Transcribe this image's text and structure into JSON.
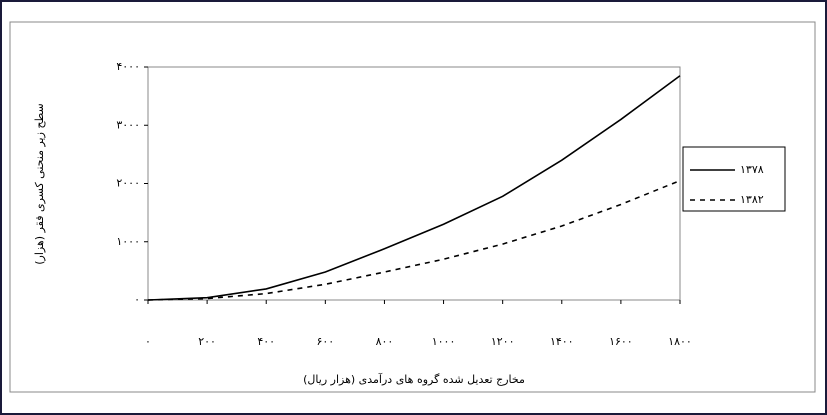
{
  "chart_data": {
    "type": "line",
    "x_label": "مخارج تعدیل شده گروه های درآمدی (هزار ریال)",
    "y_label": "سطح زیر منحنی کسری فقر (هزار)",
    "x": [
      0,
      200,
      400,
      600,
      800,
      1000,
      1200,
      1400,
      1600,
      1800
    ],
    "series": [
      {
        "name": "۱۳۷۸",
        "color": "#000000",
        "line_style": "solid",
        "values": [
          0,
          40,
          190,
          480,
          880,
          1300,
          1780,
          2400,
          3100,
          3850
        ]
      },
      {
        "name": "۱۳۸۲",
        "color": "#000000",
        "line_style": "dashed",
        "values": [
          0,
          25,
          110,
          270,
          480,
          700,
          960,
          1270,
          1640,
          2050
        ]
      }
    ],
    "xlim": [
      0,
      1800
    ],
    "xticks": [
      {
        "value": 0,
        "label": "۰"
      },
      {
        "value": 200,
        "label": "۲۰۰"
      },
      {
        "value": 400,
        "label": "۴۰۰"
      },
      {
        "value": 600,
        "label": "۶۰۰"
      },
      {
        "value": 800,
        "label": "۸۰۰"
      },
      {
        "value": 1000,
        "label": "۱۰۰۰"
      },
      {
        "value": 1200,
        "label": "۱۲۰۰"
      },
      {
        "value": 1400,
        "label": "۱۴۰۰"
      },
      {
        "value": 1600,
        "label": "۱۶۰۰"
      },
      {
        "value": 1800,
        "label": "۱۸۰۰"
      }
    ],
    "ylim": [
      0,
      4000
    ],
    "yticks": [
      {
        "value": 0,
        "label": "۰"
      },
      {
        "value": 1000,
        "label": "۱۰۰۰"
      },
      {
        "value": 2000,
        "label": "۲۰۰۰"
      },
      {
        "value": 3000,
        "label": "۳۰۰۰"
      },
      {
        "value": 4000,
        "label": "۴۰۰۰"
      }
    ],
    "legend": "right"
  }
}
